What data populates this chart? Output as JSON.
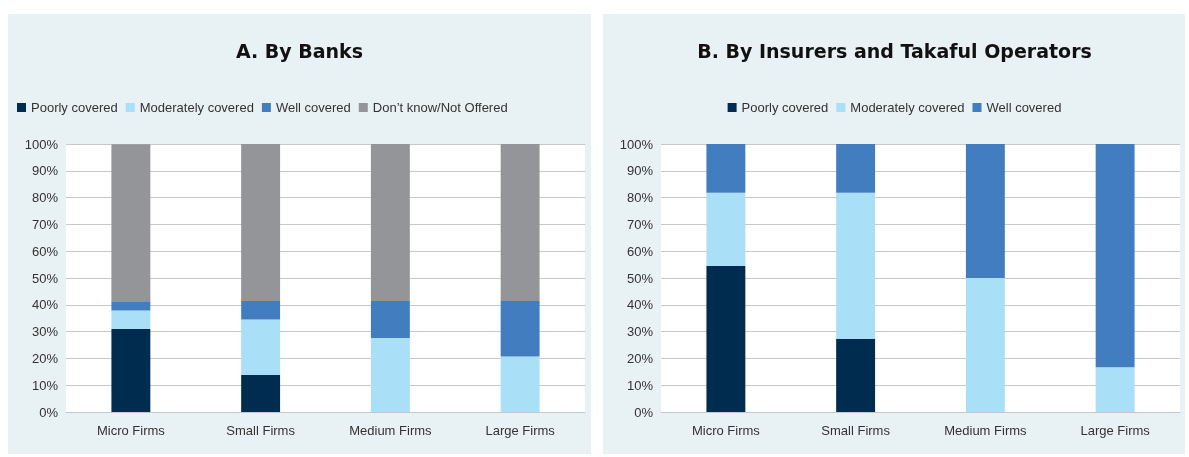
{
  "chart_data": [
    {
      "type": "bar",
      "title": "A. By Banks",
      "categories": [
        "Micro Firms",
        "Small Firms",
        "Medium Firms",
        "Large Firms"
      ],
      "stacked": true,
      "legend": "top left",
      "grid": "y",
      "ylim": [
        0,
        100
      ],
      "yticks": [
        {
          "value": 0,
          "label": "0%"
        },
        {
          "value": 10,
          "label": "10%"
        },
        {
          "value": 20,
          "label": "20%"
        },
        {
          "value": 30,
          "label": "30%"
        },
        {
          "value": 40,
          "label": "40%"
        },
        {
          "value": 50,
          "label": "50%"
        },
        {
          "value": 60,
          "label": "60%"
        },
        {
          "value": 70,
          "label": "70%"
        },
        {
          "value": 80,
          "label": "80%"
        },
        {
          "value": 90,
          "label": "90%"
        },
        {
          "value": 100,
          "label": "100%"
        }
      ],
      "series": [
        {
          "name": "Poorly covered",
          "color": "#002d4f",
          "values": [
            31.0,
            13.8,
            0,
            0
          ]
        },
        {
          "name": "Moderately covered",
          "color": "#aadff8",
          "values": [
            6.9,
            20.7,
            27.6,
            20.7
          ]
        },
        {
          "name": "Well covered",
          "color": "#427dc0",
          "values": [
            3.4,
            6.9,
            13.8,
            20.7
          ]
        },
        {
          "name": "Don’t know/Not Offered",
          "color": "#939598",
          "values": [
            58.6,
            58.6,
            58.6,
            58.6
          ]
        }
      ]
    },
    {
      "type": "bar",
      "title": "B. By Insurers and Takaful Operators",
      "categories": [
        "Micro Firms",
        "Small Firms",
        "Medium Firms",
        "Large Firms"
      ],
      "stacked": true,
      "legend": "top",
      "grid": "y",
      "ylim": [
        0,
        100
      ],
      "yticks": [
        {
          "value": 0,
          "label": "0%"
        },
        {
          "value": 10,
          "label": "10%"
        },
        {
          "value": 20,
          "label": "20%"
        },
        {
          "value": 30,
          "label": "30%"
        },
        {
          "value": 40,
          "label": "40%"
        },
        {
          "value": 50,
          "label": "50%"
        },
        {
          "value": 60,
          "label": "60%"
        },
        {
          "value": 70,
          "label": "70%"
        },
        {
          "value": 80,
          "label": "80%"
        },
        {
          "value": 90,
          "label": "90%"
        },
        {
          "value": 100,
          "label": "100%"
        }
      ],
      "series": [
        {
          "name": "Poorly covered",
          "color": "#002d4f",
          "values": [
            54.5,
            27.3,
            0,
            0
          ]
        },
        {
          "name": "Moderately covered",
          "color": "#aadff8",
          "values": [
            27.3,
            54.5,
            50,
            16.7
          ]
        },
        {
          "name": "Well covered",
          "color": "#427dc0",
          "values": [
            18.2,
            18.2,
            50,
            83.3
          ]
        }
      ]
    }
  ]
}
